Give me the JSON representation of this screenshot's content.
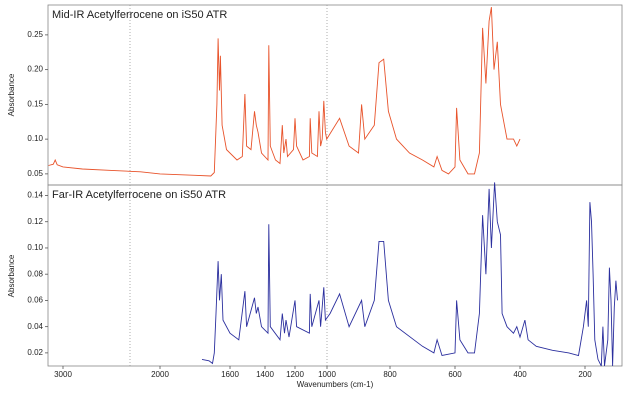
{
  "chart_data": [
    {
      "type": "line",
      "title": "Mid-IR Acetylferrocene on iS50 ATR",
      "y_label": "Absorbance",
      "ylim": [
        0.034,
        0.293
      ],
      "yticks": [
        0.05,
        {
          "value": 0.1,
          "label": "0.10"
        },
        0.15,
        {
          "value": 0.2,
          "label": "0.20"
        },
        0.25
      ],
      "x": [
        3150,
        3100,
        3080,
        3060,
        3000,
        2800,
        2500,
        2200,
        2000,
        1800,
        1710,
        1690,
        1675,
        1668,
        1660,
        1655,
        1645,
        1620,
        1560,
        1530,
        1515,
        1505,
        1480,
        1460,
        1450,
        1440,
        1420,
        1380,
        1375,
        1365,
        1330,
        1300,
        1285,
        1275,
        1260,
        1250,
        1210,
        1200,
        1190,
        1150,
        1110,
        1105,
        1095,
        1060,
        1050,
        1040,
        1030,
        1020,
        1010,
        1002,
        960,
        930,
        900,
        890,
        880,
        850,
        835,
        820,
        805,
        780,
        740,
        700,
        665,
        655,
        640,
        620,
        600,
        595,
        585,
        560,
        540,
        525,
        515,
        505,
        495,
        488,
        480,
        470,
        460,
        440,
        420,
        410,
        400
      ],
      "series": [
        {
          "color": "#e8532b",
          "values": [
            0.062,
            0.064,
            0.07,
            0.063,
            0.06,
            0.057,
            0.055,
            0.053,
            0.05,
            0.048,
            0.047,
            0.052,
            0.15,
            0.245,
            0.17,
            0.22,
            0.12,
            0.085,
            0.07,
            0.075,
            0.165,
            0.09,
            0.085,
            0.14,
            0.12,
            0.11,
            0.08,
            0.07,
            0.235,
            0.09,
            0.07,
            0.065,
            0.12,
            0.08,
            0.1,
            0.075,
            0.085,
            0.13,
            0.09,
            0.07,
            0.075,
            0.13,
            0.08,
            0.075,
            0.14,
            0.09,
            0.1,
            0.155,
            0.11,
            0.1,
            0.13,
            0.09,
            0.08,
            0.15,
            0.1,
            0.12,
            0.21,
            0.215,
            0.14,
            0.1,
            0.08,
            0.07,
            0.06,
            0.075,
            0.055,
            0.05,
            0.06,
            0.145,
            0.07,
            0.05,
            0.05,
            0.08,
            0.26,
            0.18,
            0.27,
            0.29,
            0.2,
            0.24,
            0.15,
            0.1,
            0.1,
            0.09,
            0.1
          ]
        }
      ]
    },
    {
      "type": "line",
      "title": "Far-IR Acetylferrocene on iS50 ATR",
      "y_label": "Absorbance",
      "x_label": "Wavenumbers (cm-1)",
      "xlim": [
        3150,
        95
      ],
      "xticks": [
        3000,
        2000,
        1600,
        1400,
        1200,
        1000,
        800,
        600,
        400,
        200
      ],
      "ylim": [
        0.01,
        0.148
      ],
      "yticks": [
        0.02,
        0.04,
        0.06,
        0.08,
        {
          "value": 0.1,
          "label": "0.10"
        },
        0.12,
        0.14
      ],
      "x": [
        1760,
        1720,
        1700,
        1690,
        1680,
        1668,
        1660,
        1650,
        1640,
        1600,
        1550,
        1515,
        1505,
        1460,
        1450,
        1440,
        1420,
        1380,
        1375,
        1365,
        1300,
        1285,
        1270,
        1260,
        1240,
        1200,
        1190,
        1110,
        1105,
        1095,
        1050,
        1040,
        1020,
        1010,
        990,
        960,
        930,
        890,
        880,
        850,
        835,
        820,
        805,
        780,
        700,
        665,
        655,
        640,
        600,
        595,
        585,
        560,
        540,
        525,
        515,
        505,
        495,
        488,
        478,
        470,
        460,
        455,
        440,
        420,
        410,
        400,
        385,
        375,
        350,
        300,
        250,
        220,
        205,
        195,
        190,
        185,
        180,
        175,
        170,
        160,
        150,
        145,
        140,
        130,
        125,
        120,
        115,
        110,
        105,
        100
      ],
      "series": [
        {
          "color": "#2b2f9e",
          "values": [
            0.015,
            0.014,
            0.012,
            0.02,
            0.05,
            0.09,
            0.06,
            0.08,
            0.045,
            0.035,
            0.03,
            0.067,
            0.04,
            0.062,
            0.05,
            0.055,
            0.04,
            0.035,
            0.118,
            0.04,
            0.03,
            0.05,
            0.035,
            0.045,
            0.032,
            0.06,
            0.04,
            0.035,
            0.065,
            0.04,
            0.06,
            0.04,
            0.07,
            0.045,
            0.05,
            0.065,
            0.04,
            0.06,
            0.04,
            0.06,
            0.105,
            0.105,
            0.06,
            0.04,
            0.025,
            0.02,
            0.03,
            0.018,
            0.02,
            0.06,
            0.03,
            0.02,
            0.02,
            0.05,
            0.125,
            0.08,
            0.145,
            0.1,
            0.15,
            0.12,
            0.11,
            0.05,
            0.04,
            0.035,
            0.04,
            0.032,
            0.045,
            0.03,
            0.025,
            0.022,
            0.02,
            0.018,
            0.04,
            0.06,
            0.04,
            0.135,
            0.12,
            0.08,
            0.03,
            0.015,
            0.01,
            0.04,
            0.01,
            0.03,
            0.085,
            0.06,
            0.01,
            0.055,
            0.075,
            0.06
          ]
        }
      ]
    }
  ]
}
